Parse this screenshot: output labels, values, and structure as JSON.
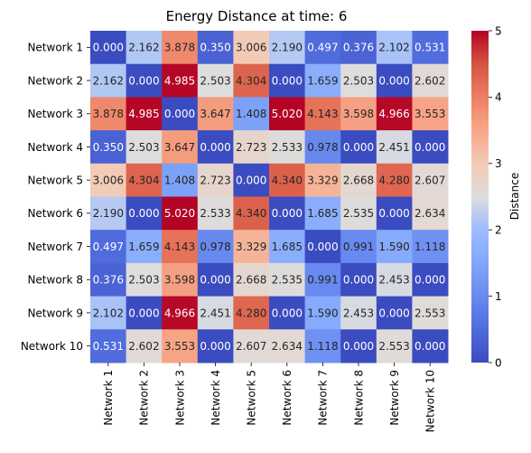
{
  "chart_data": {
    "type": "heatmap",
    "title": "Energy Distance at time: 6",
    "xlabel": "",
    "ylabel": "",
    "rows": [
      "Network 1",
      "Network 2",
      "Network 3",
      "Network 4",
      "Network 5",
      "Network 6",
      "Network 7",
      "Network 8",
      "Network 9",
      "Network 10"
    ],
    "cols": [
      "Network 1",
      "Network 2",
      "Network 3",
      "Network 4",
      "Network 5",
      "Network 6",
      "Network 7",
      "Network 8",
      "Network 9",
      "Network 10"
    ],
    "values": [
      [
        0.0,
        2.162,
        3.878,
        0.35,
        3.006,
        2.19,
        0.497,
        0.376,
        2.102,
        0.531
      ],
      [
        2.162,
        0.0,
        4.985,
        2.503,
        4.304,
        0.0,
        1.659,
        2.503,
        0.0,
        2.602
      ],
      [
        3.878,
        4.985,
        0.0,
        3.647,
        1.408,
        5.02,
        4.143,
        3.598,
        4.966,
        3.553
      ],
      [
        0.35,
        2.503,
        3.647,
        0.0,
        2.723,
        2.533,
        0.978,
        0.0,
        2.451,
        0.0
      ],
      [
        3.006,
        4.304,
        1.408,
        2.723,
        0.0,
        4.34,
        3.329,
        2.668,
        4.28,
        2.607
      ],
      [
        2.19,
        0.0,
        5.02,
        2.533,
        4.34,
        0.0,
        1.685,
        2.535,
        0.0,
        2.634
      ],
      [
        0.497,
        1.659,
        4.143,
        0.978,
        3.329,
        1.685,
        0.0,
        0.991,
        1.59,
        1.118
      ],
      [
        0.376,
        2.503,
        3.598,
        0.0,
        2.668,
        2.535,
        0.991,
        0.0,
        2.453,
        0.0
      ],
      [
        2.102,
        0.0,
        4.966,
        2.451,
        4.28,
        0.0,
        1.59,
        2.453,
        0.0,
        2.553
      ],
      [
        0.531,
        2.602,
        3.553,
        0.0,
        2.607,
        2.634,
        1.118,
        0.0,
        2.553,
        0.0
      ]
    ],
    "value_format": "3 decimals",
    "colormap": "coolwarm",
    "colorbar": {
      "label": "Distance",
      "range": [
        0,
        5
      ],
      "ticks": [
        0,
        1,
        2,
        3,
        4,
        5
      ]
    },
    "grid": false
  }
}
